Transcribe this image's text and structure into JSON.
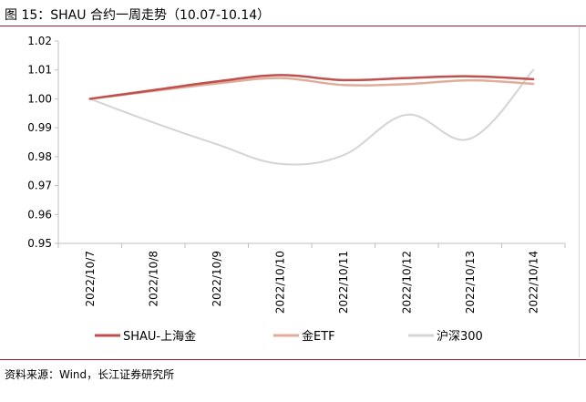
{
  "title": "图 15：SHAU 合约一周走势（10.07-10.14）",
  "source": "资料来源：Wind，长江证券研究所",
  "colors": {
    "rule": "#a6192e"
  },
  "chart_data": {
    "type": "line",
    "categories": [
      "2022/10/7",
      "2022/10/8",
      "2022/10/9",
      "2022/10/10",
      "2022/10/11",
      "2022/10/12",
      "2022/10/13",
      "2022/10/14"
    ],
    "ylim": [
      0.95,
      1.02
    ],
    "yticks": [
      "1.02",
      "1.01",
      "1.00",
      "0.99",
      "0.98",
      "0.97",
      "0.96",
      "0.95"
    ],
    "grid": false,
    "legend": "bottom",
    "series": [
      {
        "name": "SHAU-上海金",
        "color": "#c0504d",
        "width": 2.5,
        "values": [
          1.0,
          1.003,
          1.006,
          1.0082,
          1.0065,
          1.0072,
          1.0078,
          1.0068
        ]
      },
      {
        "name": "金ETF",
        "color": "#e0ad9a",
        "width": 2.5,
        "values": [
          1.0,
          1.0027,
          1.0053,
          1.0072,
          1.0048,
          1.0051,
          1.0064,
          1.0052
        ]
      },
      {
        "name": "沪深300",
        "color": "#d4d4d4",
        "width": 2,
        "values": [
          1.0,
          0.9918,
          0.9843,
          0.9775,
          0.9805,
          0.9945,
          0.9862,
          1.01
        ]
      }
    ]
  }
}
